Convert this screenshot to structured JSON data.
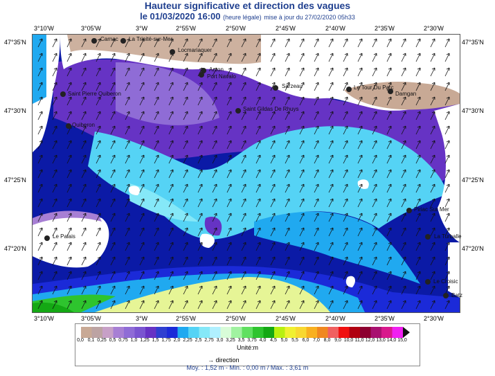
{
  "title": "Hauteur significative et direction des vagues",
  "subtitle": {
    "date": "le 01/03/2020 16:00",
    "legal": "(heure légale)",
    "update": "mise à jour du 27/02/2020 05h33"
  },
  "longitudes": [
    "3°10'W",
    "3°05'W",
    "3°W",
    "2°55'W",
    "2°50'W",
    "2°45'W",
    "2°40'W",
    "2°35'W",
    "2°30'W"
  ],
  "latitudes": [
    "47°35'N",
    "47°30'N",
    "47°25'N",
    "47°20'N"
  ],
  "places": [
    {
      "name": "Carnac"
    },
    {
      "name": "La Trinité-sur-Mer"
    },
    {
      "name": "Locmariaquer"
    },
    {
      "name": "Arzon"
    },
    {
      "name": "Port Navalo"
    },
    {
      "name": "Sarzeau"
    },
    {
      "name": "Le Tour Du Parc"
    },
    {
      "name": "Damgan"
    },
    {
      "name": "Saint Pierre Quiberon"
    },
    {
      "name": "Quiberon"
    },
    {
      "name": "Saint Gildas De Rhuys"
    },
    {
      "name": "Piriac Sur Mer"
    },
    {
      "name": "La Turballe"
    },
    {
      "name": "Le Palais"
    },
    {
      "name": "Le Croisic"
    },
    {
      "name": "Batz"
    }
  ],
  "legend": {
    "ticks": [
      "0,0",
      "0,1",
      "0,25",
      "0,5",
      "0,75",
      "1,0",
      "1,25",
      "1,5",
      "1,75",
      "2,0",
      "2,25",
      "2,5",
      "2,75",
      "3,0",
      "3,25",
      "3,5",
      "3,75",
      "4,0",
      "4,5",
      "5,0",
      "5,5",
      "6,0",
      "7,0",
      "8,0",
      "9,0",
      "10,0",
      "11,0",
      "12,0",
      "13,0",
      "14,0",
      "15,0"
    ],
    "colors": [
      "#c8a995",
      "#bca3a3",
      "#c7a0c7",
      "#a77fd4",
      "#8f6cd6",
      "#7a55d0",
      "#6633c4",
      "#2f3fd0",
      "#1b2ad8",
      "#20a9f0",
      "#55d3f5",
      "#85e8f8",
      "#b0f0ff",
      "#d8fcd8",
      "#a0f2a0",
      "#60e060",
      "#2ec42e",
      "#14a814",
      "#b8f010",
      "#f0f030",
      "#f8d830",
      "#f8b020",
      "#f08820",
      "#f06060",
      "#f01010",
      "#b00010",
      "#8c0030",
      "#a81070",
      "#d8188c",
      "#f020f0"
    ],
    "unit": "Unité:m",
    "direction": "direction",
    "stats": "Moy. : 1,52 m    -    Min. : 0,00 m / Max. : 3,61 m",
    "direction_arrow": "→"
  }
}
